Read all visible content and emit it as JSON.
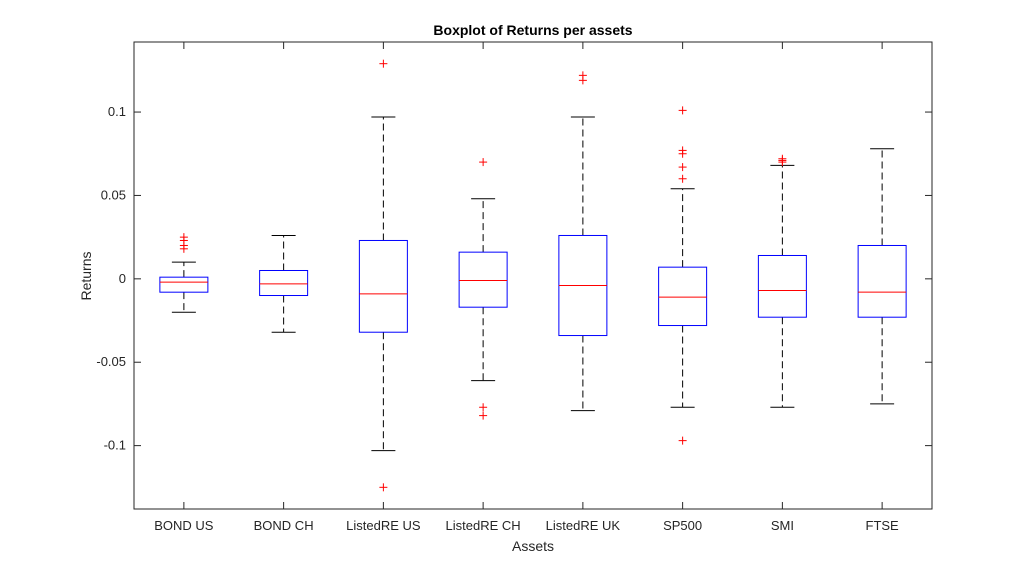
{
  "chart_data": {
    "type": "box",
    "title": "Boxplot of Returns per assets",
    "xlabel": "Assets",
    "ylabel": "Returns",
    "ylim": [
      -0.138,
      0.142
    ],
    "yticks": [
      -0.1,
      -0.05,
      0,
      0.05,
      0.1
    ],
    "ytick_labels": [
      "-0.1",
      "-0.05",
      "0",
      "0.05",
      "0.1"
    ],
    "grid": false,
    "legend": "none",
    "categories": [
      "BOND US",
      "BOND CH",
      "ListedRE US",
      "ListedRE CH",
      "ListedRE UK",
      "SP500",
      "SMI",
      "FTSE"
    ],
    "boxes": [
      {
        "whisker_low": -0.02,
        "q1": -0.008,
        "median": -0.002,
        "q3": 0.001,
        "whisker_high": 0.01,
        "outliers": [
          0.018,
          0.02,
          0.023,
          0.025
        ]
      },
      {
        "whisker_low": -0.032,
        "q1": -0.01,
        "median": -0.003,
        "q3": 0.005,
        "whisker_high": 0.026,
        "outliers": []
      },
      {
        "whisker_low": -0.103,
        "q1": -0.032,
        "median": -0.009,
        "q3": 0.023,
        "whisker_high": 0.097,
        "outliers": [
          0.129,
          -0.125
        ]
      },
      {
        "whisker_low": -0.061,
        "q1": -0.017,
        "median": -0.001,
        "q3": 0.016,
        "whisker_high": 0.048,
        "outliers": [
          0.07,
          -0.077,
          -0.082
        ]
      },
      {
        "whisker_low": -0.079,
        "q1": -0.034,
        "median": -0.004,
        "q3": 0.026,
        "whisker_high": 0.097,
        "outliers": [
          0.119,
          0.122
        ]
      },
      {
        "whisker_low": -0.077,
        "q1": -0.028,
        "median": -0.011,
        "q3": 0.007,
        "whisker_high": 0.054,
        "outliers": [
          0.101,
          0.077,
          0.075,
          0.067,
          0.06,
          -0.097
        ]
      },
      {
        "whisker_low": -0.077,
        "q1": -0.023,
        "median": -0.007,
        "q3": 0.014,
        "whisker_high": 0.068,
        "outliers": [
          0.07,
          0.071,
          0.072
        ]
      },
      {
        "whisker_low": -0.075,
        "q1": -0.023,
        "median": -0.008,
        "q3": 0.02,
        "whisker_high": 0.078,
        "outliers": []
      }
    ],
    "colors": {
      "box": "#0000ff",
      "median": "#ff0000",
      "whisker": "#000000",
      "outlier": "#ff0000",
      "axis": "#262626"
    }
  }
}
